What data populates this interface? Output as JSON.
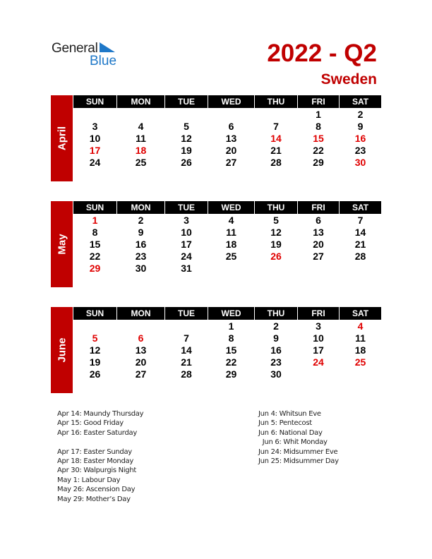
{
  "logo": {
    "general": "General",
    "blue": "Blue"
  },
  "title": "2022 - Q2",
  "country": "Sweden",
  "colors": {
    "accent": "#c00000",
    "holiday": "#e00000",
    "logo_blue": "#1f78c8"
  },
  "weekdays": [
    "SUN",
    "MON",
    "TUE",
    "WED",
    "THU",
    "FRI",
    "SAT"
  ],
  "months": [
    {
      "name": "April",
      "weeks": [
        [
          "",
          "",
          "",
          "",
          "",
          "1",
          "2"
        ],
        [
          "3",
          "4",
          "5",
          "6",
          "7",
          "8",
          "9"
        ],
        [
          "10",
          "11",
          "12",
          "13",
          "14",
          "15",
          "16"
        ],
        [
          "17",
          "18",
          "19",
          "20",
          "21",
          "22",
          "23"
        ],
        [
          "24",
          "25",
          "26",
          "27",
          "28",
          "29",
          "30"
        ]
      ],
      "red": [
        "14",
        "15",
        "16",
        "17",
        "18",
        "30"
      ]
    },
    {
      "name": "May",
      "weeks": [
        [
          "1",
          "2",
          "3",
          "4",
          "5",
          "6",
          "7"
        ],
        [
          "8",
          "9",
          "10",
          "11",
          "12",
          "13",
          "14"
        ],
        [
          "15",
          "16",
          "17",
          "18",
          "19",
          "20",
          "21"
        ],
        [
          "22",
          "23",
          "24",
          "25",
          "26",
          "27",
          "28"
        ],
        [
          "29",
          "30",
          "31",
          "",
          "",
          "",
          ""
        ]
      ],
      "red": [
        "1",
        "26",
        "29"
      ]
    },
    {
      "name": "June",
      "weeks": [
        [
          "",
          "",
          "",
          "1",
          "2",
          "3",
          "4"
        ],
        [
          "5",
          "6",
          "7",
          "8",
          "9",
          "10",
          "11"
        ],
        [
          "12",
          "13",
          "14",
          "15",
          "16",
          "17",
          "18"
        ],
        [
          "19",
          "20",
          "21",
          "22",
          "23",
          "24",
          "25"
        ],
        [
          "26",
          "27",
          "28",
          "29",
          "30",
          "",
          ""
        ]
      ],
      "red": [
        "4",
        "5",
        "6",
        "24",
        "25"
      ]
    }
  ],
  "holidays_left": [
    "Apr 14: Maundy Thursday",
    "Apr 15: Good Friday",
    "Apr 16: Easter Saturday",
    "",
    "Apr 17: Easter Sunday",
    "Apr 18: Easter Monday",
    "Apr 30: Walpurgis Night",
    "May 1: Labour Day",
    "May 26: Ascension Day",
    "May 29: Mother’s Day"
  ],
  "holidays_right": [
    "Jun 4: Whitsun Eve",
    "Jun 5: Pentecost",
    "Jun 6: National Day",
    "  Jun 6: Whit Monday",
    "Jun 24: Midsummer Eve",
    "Jun 25: Midsummer Day"
  ]
}
